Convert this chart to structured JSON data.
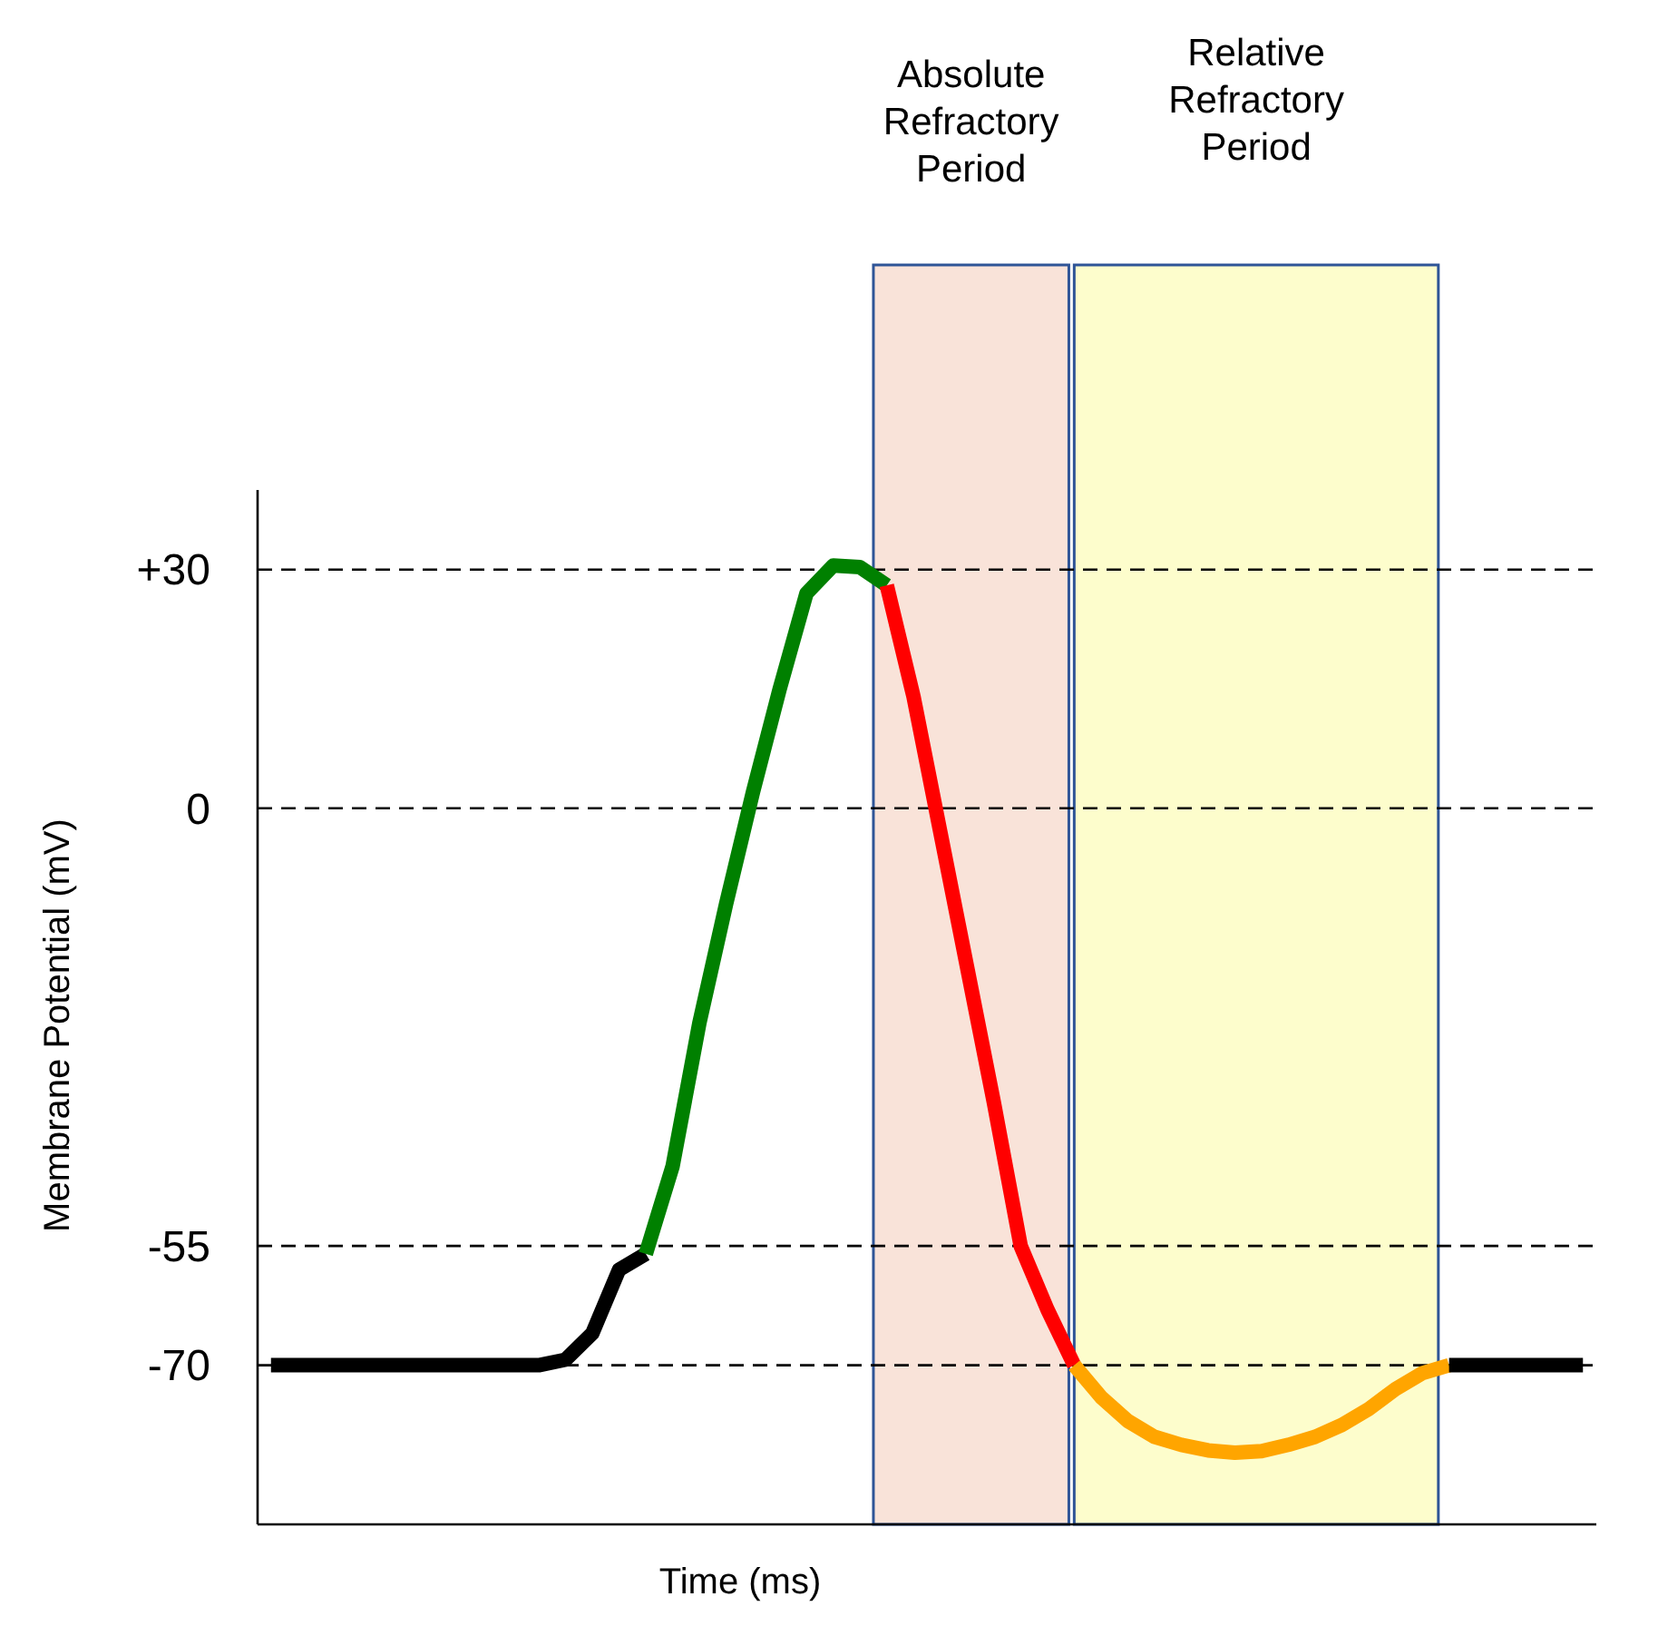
{
  "chart_data": {
    "type": "line",
    "xlabel": "Time (ms)",
    "ylabel": "Membrane Potential (mV)",
    "categories": [
      null,
      null,
      null,
      null,
      null,
      null,
      null,
      null,
      null,
      null,
      null,
      null,
      null,
      null,
      null,
      null,
      null,
      null,
      null,
      null,
      null,
      null,
      null,
      null,
      null,
      null,
      null,
      null,
      null,
      null,
      null,
      null,
      null,
      null,
      null,
      null,
      null,
      null,
      null,
      null,
      null,
      null,
      null,
      null,
      null,
      null,
      null,
      null,
      null,
      null
    ],
    "ylim": [
      -90,
      40
    ],
    "yticks": [
      {
        "value": 30,
        "label": "+30"
      },
      0,
      -55,
      -70
    ],
    "tick_labels": "y",
    "grid": "y",
    "line_style": "solid",
    "marker": "none",
    "series": [
      {
        "color": "#000000",
        "values": [
          -70,
          -70,
          -70,
          -70,
          -70,
          -70,
          -70,
          -70,
          -70,
          -70,
          -70,
          -69.3,
          -66,
          -58,
          -56,
          null,
          null,
          null,
          null,
          null,
          null,
          null,
          null,
          null,
          null,
          null,
          null,
          null,
          null,
          null,
          null,
          null,
          null,
          null,
          null,
          null,
          null,
          null,
          null,
          null,
          null,
          null,
          null,
          null,
          null,
          null,
          null,
          null,
          null,
          null
        ]
      },
      {
        "color": "#008000",
        "values": [
          null,
          null,
          null,
          null,
          null,
          null,
          null,
          null,
          null,
          null,
          null,
          null,
          null,
          null,
          -56,
          -45,
          -27,
          -12,
          2,
          15,
          27,
          30.5,
          30.3,
          28,
          null,
          null,
          null,
          null,
          null,
          null,
          null,
          null,
          null,
          null,
          null,
          null,
          null,
          null,
          null,
          null,
          null,
          null,
          null,
          null,
          null,
          null,
          null,
          null,
          null,
          null
        ]
      },
      {
        "color": "#ff0000",
        "values": [
          null,
          null,
          null,
          null,
          null,
          null,
          null,
          null,
          null,
          null,
          null,
          null,
          null,
          null,
          null,
          null,
          null,
          null,
          null,
          null,
          null,
          null,
          null,
          28,
          14,
          -3,
          -20,
          -37,
          -55,
          -63,
          -70,
          null,
          null,
          null,
          null,
          null,
          null,
          null,
          null,
          null,
          null,
          null,
          null,
          null,
          null,
          null,
          null,
          null,
          null,
          null
        ]
      },
      {
        "color": "#ffa500",
        "values": [
          null,
          null,
          null,
          null,
          null,
          null,
          null,
          null,
          null,
          null,
          null,
          null,
          null,
          null,
          null,
          null,
          null,
          null,
          null,
          null,
          null,
          null,
          null,
          null,
          null,
          null,
          null,
          null,
          null,
          null,
          -70,
          -74,
          -77,
          -79,
          -80,
          -80.7,
          -81,
          -80.8,
          -80,
          -79,
          -77.5,
          -75.5,
          -73,
          -71,
          -70,
          null,
          null,
          null,
          null,
          null
        ]
      },
      {
        "color": "#000000",
        "values": [
          null,
          null,
          null,
          null,
          null,
          null,
          null,
          null,
          null,
          null,
          null,
          null,
          null,
          null,
          null,
          null,
          null,
          null,
          null,
          null,
          null,
          null,
          null,
          null,
          null,
          null,
          null,
          null,
          null,
          null,
          null,
          null,
          null,
          null,
          null,
          null,
          null,
          null,
          null,
          null,
          null,
          null,
          null,
          null,
          -70,
          -70,
          -70,
          -70,
          -70,
          -70
        ]
      }
    ],
    "annotations": [
      "Absolute Refractory Period",
      "Relative Refractory Period"
    ]
  }
}
